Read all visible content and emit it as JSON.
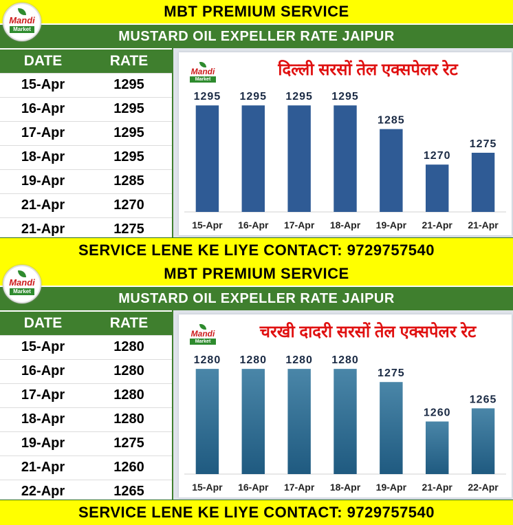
{
  "panels": [
    {
      "banner_title": "MBT PREMIUM SERVICE",
      "subtitle": "MUSTARD OIL EXPELLER RATE JAIPUR",
      "logo_text": "Mandi",
      "logo_subtext": "Market",
      "table": {
        "headers": [
          "DATE",
          "RATE"
        ],
        "rows": [
          [
            "15-Apr",
            "1295"
          ],
          [
            "16-Apr",
            "1295"
          ],
          [
            "17-Apr",
            "1295"
          ],
          [
            "18-Apr",
            "1295"
          ],
          [
            "19-Apr",
            "1285"
          ],
          [
            "21-Apr",
            "1270"
          ],
          [
            "21-Apr",
            "1275"
          ]
        ]
      },
      "footer": "SERVICE LENE KE LIYE CONTACT: 9729757540"
    },
    {
      "banner_title": "MBT PREMIUM SERVICE",
      "subtitle": "MUSTARD OIL EXPELLER RATE JAIPUR",
      "logo_text": "Mandi",
      "logo_subtext": "Market",
      "table": {
        "headers": [
          "DATE",
          "RATE"
        ],
        "rows": [
          [
            "15-Apr",
            "1280"
          ],
          [
            "16-Apr",
            "1280"
          ],
          [
            "17-Apr",
            "1280"
          ],
          [
            "18-Apr",
            "1280"
          ],
          [
            "19-Apr",
            "1275"
          ],
          [
            "21-Apr",
            "1260"
          ],
          [
            "22-Apr",
            "1265"
          ]
        ]
      },
      "footer": "SERVICE LENE KE LIYE CONTACT: 9729757540"
    }
  ],
  "chart_data": [
    {
      "type": "bar",
      "title": "दिल्ली सरसों तेल एक्सपेलर रेट",
      "categories": [
        "15-Apr",
        "16-Apr",
        "17-Apr",
        "18-Apr",
        "19-Apr",
        "21-Apr",
        "21-Apr"
      ],
      "values": [
        1295,
        1295,
        1295,
        1295,
        1285,
        1270,
        1275
      ],
      "bar_color": "#2f5b95",
      "xlabel": "",
      "ylabel": "",
      "ylim": [
        1250,
        1300
      ],
      "grid": false,
      "data_labels": true
    },
    {
      "type": "bar",
      "title": "चरखी दादरी सरसों तेल एक्सपेलर रेट",
      "categories": [
        "15-Apr",
        "16-Apr",
        "17-Apr",
        "18-Apr",
        "19-Apr",
        "21-Apr",
        "22-Apr"
      ],
      "values": [
        1280,
        1280,
        1280,
        1280,
        1275,
        1260,
        1265
      ],
      "bar_color": "#1f5a80",
      "bar_color_top": "#4a86a8",
      "xlabel": "",
      "ylabel": "",
      "ylim": [
        1240,
        1285
      ],
      "grid": false,
      "data_labels": true
    }
  ]
}
